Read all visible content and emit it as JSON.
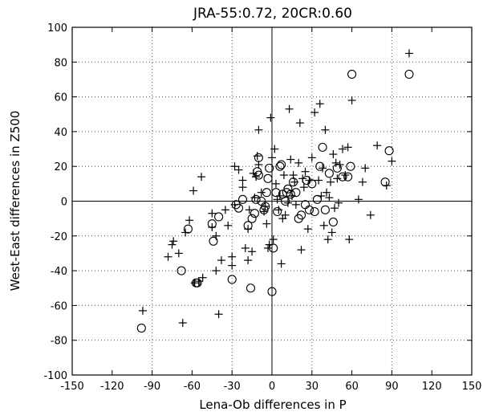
{
  "chart_data": {
    "type": "scatter",
    "title": "JRA-55:0.72, 20CR:0.60",
    "xlabel": "Lena-Ob differences in P",
    "ylabel": "West-East differences in Z500",
    "xlim": [
      -150,
      150
    ],
    "ylim": [
      -100,
      100
    ],
    "xticks": [
      -150,
      -120,
      -90,
      -60,
      -30,
      0,
      30,
      60,
      90,
      120,
      150
    ],
    "yticks": [
      -100,
      -80,
      -60,
      -40,
      -20,
      0,
      20,
      40,
      60,
      80,
      100
    ],
    "xtick_labels": [
      "-150",
      "-120",
      "-90",
      "-60",
      "-30",
      "0",
      "30",
      "60",
      "90",
      "120",
      "150"
    ],
    "ytick_labels": [
      "-100",
      "-80",
      "-60",
      "-40",
      "-20",
      "0",
      "20",
      "40",
      "60",
      "80",
      "100"
    ],
    "grid": "dotted, at x = -90, -30, 30, 90 and every 20 in y",
    "zero_lines": true,
    "series": [
      {
        "marker": "plus",
        "points": [
          [
            -97,
            -63
          ],
          [
            -67,
            -70
          ],
          [
            -78,
            -32
          ],
          [
            -75,
            -25
          ],
          [
            -74,
            -23
          ],
          [
            -70,
            -30
          ],
          [
            -65,
            -18
          ],
          [
            -62,
            -11
          ],
          [
            -58,
            -47
          ],
          [
            -55,
            -46
          ],
          [
            -52,
            -44
          ],
          [
            -45,
            -7
          ],
          [
            -45,
            -15
          ],
          [
            -42,
            -40
          ],
          [
            -42,
            -20
          ],
          [
            -40,
            -65
          ],
          [
            -38,
            -34
          ],
          [
            -35,
            -5
          ],
          [
            -33,
            -14
          ],
          [
            -30,
            -32
          ],
          [
            -30,
            -37
          ],
          [
            -28,
            -2
          ],
          [
            -28,
            20
          ],
          [
            -25,
            18
          ],
          [
            -22,
            12
          ],
          [
            -22,
            8
          ],
          [
            -20,
            -27
          ],
          [
            -18,
            -34
          ],
          [
            -18,
            -16
          ],
          [
            -17,
            -5
          ],
          [
            -15,
            -29
          ],
          [
            -14,
            16
          ],
          [
            -13,
            2
          ],
          [
            -12,
            14
          ],
          [
            -11,
            26
          ],
          [
            -10,
            41
          ],
          [
            -10,
            21
          ],
          [
            -8,
            5
          ],
          [
            -6,
            -6
          ],
          [
            -5,
            -3
          ],
          [
            -4,
            -13
          ],
          [
            -3,
            -27
          ],
          [
            -2,
            -25
          ],
          [
            -1,
            48
          ],
          [
            0,
            25
          ],
          [
            1,
            -22
          ],
          [
            2,
            30
          ],
          [
            3,
            10
          ],
          [
            4,
            1
          ],
          [
            5,
            -5
          ],
          [
            6,
            3
          ],
          [
            7,
            -36
          ],
          [
            8,
            -10
          ],
          [
            9,
            15
          ],
          [
            10,
            -8
          ],
          [
            12,
            -1
          ],
          [
            13,
            53
          ],
          [
            14,
            24
          ],
          [
            15,
            3
          ],
          [
            16,
            15
          ],
          [
            17,
            11
          ],
          [
            18,
            -2
          ],
          [
            20,
            22
          ],
          [
            21,
            45
          ],
          [
            22,
            -28
          ],
          [
            23,
            13
          ],
          [
            24,
            8
          ],
          [
            25,
            17
          ],
          [
            27,
            -16
          ],
          [
            28,
            12
          ],
          [
            30,
            25
          ],
          [
            32,
            51
          ],
          [
            35,
            12
          ],
          [
            36,
            56
          ],
          [
            37,
            3
          ],
          [
            38,
            19
          ],
          [
            39,
            -14
          ],
          [
            40,
            41
          ],
          [
            41,
            5
          ],
          [
            42,
            -22
          ],
          [
            43,
            2
          ],
          [
            44,
            11
          ],
          [
            45,
            -18
          ],
          [
            46,
            27
          ],
          [
            47,
            -4
          ],
          [
            48,
            22
          ],
          [
            49,
            13
          ],
          [
            50,
            -1
          ],
          [
            51,
            21
          ],
          [
            53,
            30
          ],
          [
            55,
            15
          ],
          [
            57,
            31
          ],
          [
            58,
            -22
          ],
          [
            60,
            58
          ],
          [
            65,
            1
          ],
          [
            68,
            11
          ],
          [
            70,
            19
          ],
          [
            74,
            -8
          ],
          [
            79,
            32
          ],
          [
            86,
            9
          ],
          [
            90,
            23
          ],
          [
            103,
            85
          ],
          [
            -53,
            14
          ],
          [
            -59,
            6
          ]
        ]
      },
      {
        "marker": "circle",
        "points": [
          [
            -98,
            -73
          ],
          [
            -68,
            -40
          ],
          [
            -63,
            -16
          ],
          [
            -57,
            -47
          ],
          [
            -56,
            -47
          ],
          [
            -45,
            -13
          ],
          [
            -44,
            -23
          ],
          [
            -40,
            -9
          ],
          [
            -30,
            -45
          ],
          [
            -27,
            -2
          ],
          [
            -25,
            -4
          ],
          [
            -22,
            1
          ],
          [
            -18,
            -14
          ],
          [
            -16,
            -50
          ],
          [
            -15,
            -10
          ],
          [
            -13,
            -7
          ],
          [
            -12,
            1
          ],
          [
            -11,
            17
          ],
          [
            -10,
            25
          ],
          [
            -10,
            15
          ],
          [
            -8,
            0
          ],
          [
            -6,
            -5
          ],
          [
            -5,
            -3
          ],
          [
            -4,
            5
          ],
          [
            -3,
            13
          ],
          [
            -2,
            19
          ],
          [
            0,
            -52
          ],
          [
            1,
            -27
          ],
          [
            3,
            5
          ],
          [
            4,
            -6
          ],
          [
            6,
            20
          ],
          [
            7,
            21
          ],
          [
            8,
            4
          ],
          [
            10,
            0
          ],
          [
            11,
            5
          ],
          [
            12,
            7
          ],
          [
            14,
            4
          ],
          [
            16,
            11
          ],
          [
            18,
            5
          ],
          [
            20,
            -10
          ],
          [
            22,
            -8
          ],
          [
            25,
            -2
          ],
          [
            26,
            12
          ],
          [
            28,
            -5
          ],
          [
            30,
            10
          ],
          [
            32,
            -6
          ],
          [
            34,
            1
          ],
          [
            36,
            20
          ],
          [
            38,
            31
          ],
          [
            40,
            -5
          ],
          [
            43,
            16
          ],
          [
            46,
            -12
          ],
          [
            49,
            19
          ],
          [
            53,
            14
          ],
          [
            57,
            14
          ],
          [
            59,
            20
          ],
          [
            60,
            73
          ],
          [
            85,
            11
          ],
          [
            88,
            29
          ],
          [
            103,
            73
          ]
        ]
      }
    ]
  }
}
